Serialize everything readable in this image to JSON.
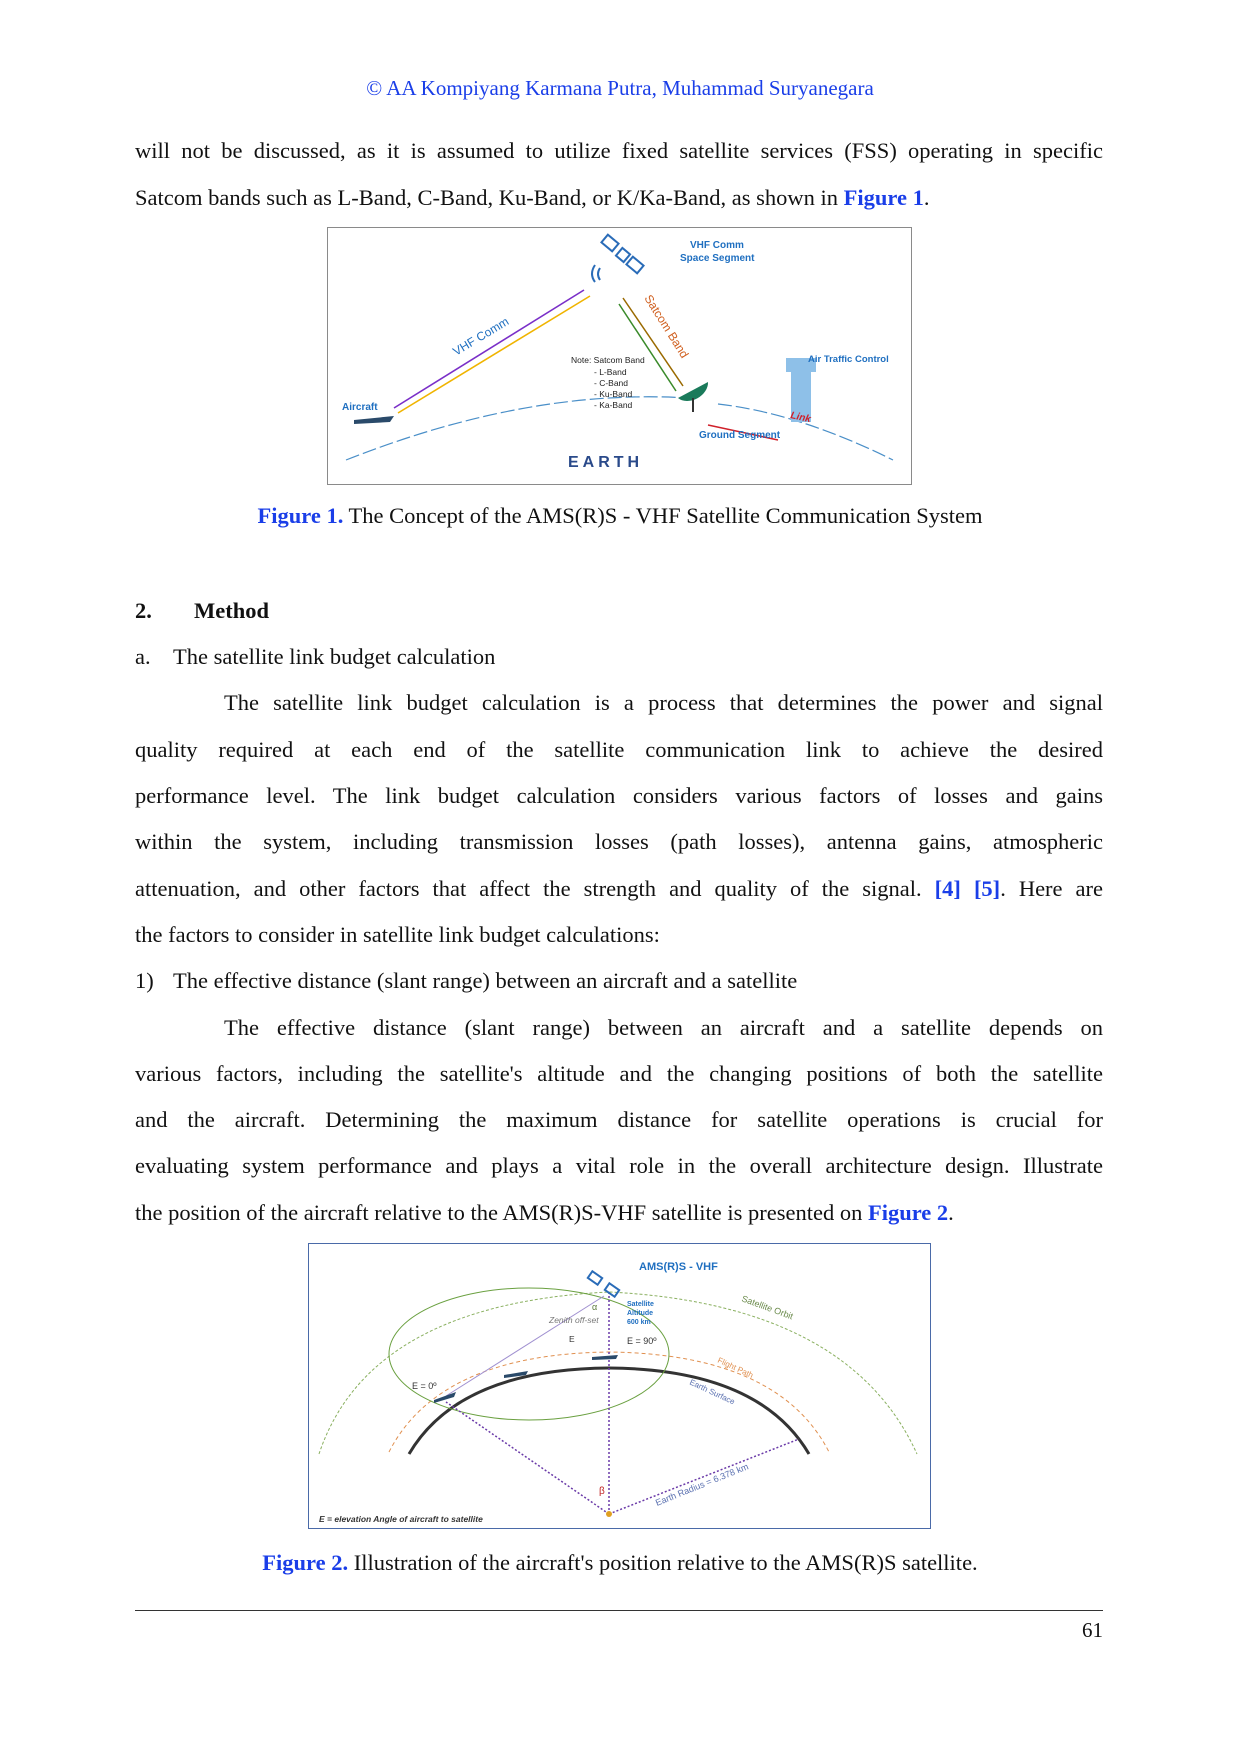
{
  "header": "© AA Kompiyang Karmana Putra, Muhammad Suryanegara",
  "intro": {
    "line1": "will not be discussed, as it is assumed to utilize fixed satellite services (FSS) operating in specific",
    "line2_pre": "Satcom bands such as L-Band, C-Band, Ku-Band, or K/Ka-Band, as shown in ",
    "line2_link": "Figure 1",
    "line2_post": "."
  },
  "figure1": {
    "labels": {
      "vhf_comm_space": "VHF Comm",
      "space_segment": "Space Segment",
      "vhf_comm": "VHF Comm",
      "satcom_band": "Satcom Band",
      "aircraft": "Aircraft",
      "atc": "Air Traffic Control",
      "link": "Link",
      "ground_segment": "Ground Segment",
      "earth": "EARTH",
      "note_title": "Note: Satcom Band",
      "note_items": [
        "- L-Band",
        "- C-Band",
        "- Ku-Band",
        "- Ka-Band"
      ]
    },
    "caption_label": "Figure 1.",
    "caption_text": " The Concept of the AMS(R)S - VHF Satellite Communication System"
  },
  "section": {
    "number": "2.",
    "title": "Method"
  },
  "subsection": {
    "letter": "a.",
    "title": "The satellite link budget calculation"
  },
  "para1": {
    "lines": [
      "The satellite link budget calculation is a process that determines the power and signal",
      "quality required at each end of the satellite communication link to achieve the desired",
      "performance level. The link budget calculation considers various factors of losses and gains",
      "within the system, including transmission losses (path losses), antenna gains, atmospheric"
    ],
    "line5_pre": "attenuation, and other factors that affect the strength and quality of the signal. ",
    "ref4": "[4]",
    "ref5": "[5]",
    "line5_post": ". Here are",
    "line6": "the factors to consider in satellite link budget calculations:"
  },
  "item1": {
    "number": "1)",
    "title": "The effective distance (slant range) between an aircraft and a satellite"
  },
  "para2": {
    "lines": [
      "The effective distance (slant range) between an aircraft and a satellite depends on",
      "various factors, including the satellite's altitude and the changing positions of both the satellite",
      "and the aircraft. Determining the maximum distance for satellite operations is crucial for",
      "evaluating system performance and plays a vital role in the overall architecture design. Illustrate"
    ],
    "line5_pre": "the position of the aircraft relative to the AMS(R)S-VHF satellite is presented on ",
    "line5_link": "Figure 2",
    "line5_post": "."
  },
  "figure2": {
    "labels": {
      "title": "AMS(R)S - VHF",
      "sat_alt1": "Satellite",
      "sat_alt2": "Altitude",
      "sat_alt3": "600 km",
      "alpha": "α",
      "zenith": "Zenith off-set",
      "e": "E",
      "e90": "E = 90º",
      "e0": "E = 0º",
      "orbit": "Satellite Orbit",
      "flight": "Flight Path",
      "surface": "Earth Surface",
      "beta": "β",
      "radius": "Earth Radius = 6.378 km",
      "legend": "E = elevation Angle of aircraft to satellite"
    },
    "caption_label": "Figure 2.",
    "caption_text": " Illustration of the aircraft's position relative to the AMS(R)S satellite."
  },
  "page_number": "61",
  "colors": {
    "link_blue": "#1a3ee8",
    "diagram_blue": "#1f6fc0"
  }
}
